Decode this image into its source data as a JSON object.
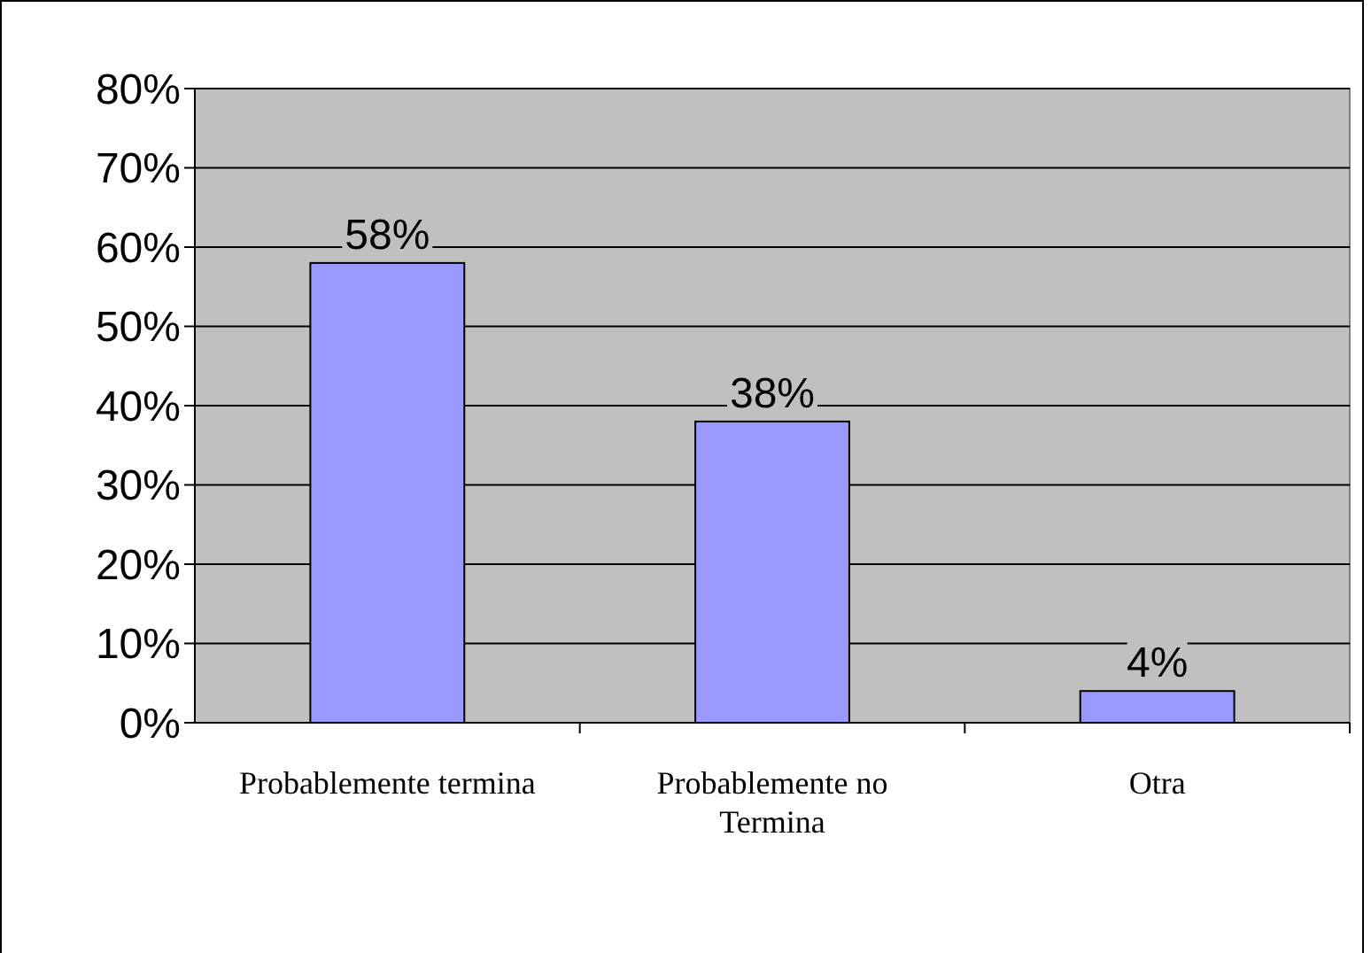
{
  "chart_data": {
    "type": "bar",
    "categories": [
      "Probablemente termina",
      "Probablemente no Termina",
      "Otra"
    ],
    "values": [
      58,
      38,
      4
    ],
    "color": "#9999ff",
    "value_labels": [
      "58%",
      "38%",
      "4%"
    ],
    "ylim": [
      0,
      80
    ],
    "yticks": [
      {
        "value": 0,
        "label": "0%"
      },
      {
        "value": 10,
        "label": "10%"
      },
      {
        "value": 20,
        "label": "20%"
      },
      {
        "value": 30,
        "label": "30%"
      },
      {
        "value": 40,
        "label": "40%"
      },
      {
        "value": 50,
        "label": "50%"
      },
      {
        "value": 60,
        "label": "60%"
      },
      {
        "value": 70,
        "label": "70%"
      },
      {
        "value": 80,
        "label": "80%"
      }
    ],
    "grid": "y"
  }
}
